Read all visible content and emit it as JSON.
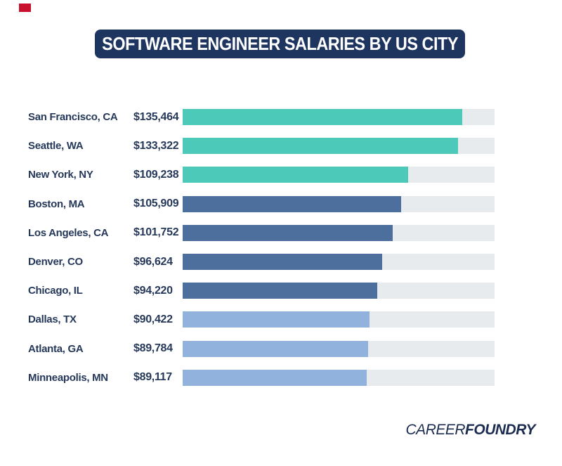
{
  "marker": {
    "color": "#c8102e"
  },
  "header": {
    "title": "SOFTWARE ENGINEER SALARIES BY US CITY",
    "background": "#1e3560",
    "text_color": "#ffffff"
  },
  "chart_data": {
    "type": "bar",
    "orientation": "horizontal",
    "title": "SOFTWARE ENGINEER SALARIES BY US CITY",
    "categories": [
      "San Francisco, CA",
      "Seattle, WA",
      "New York, NY",
      "Boston, MA",
      "Los Angeles, CA",
      "Denver, CO",
      "Chicago, IL",
      "Dallas, TX",
      "Atlanta, GA",
      "Minneapolis, MN"
    ],
    "values": [
      135464,
      133322,
      109238,
      105909,
      101752,
      96624,
      94220,
      90422,
      89784,
      89117
    ],
    "value_labels": [
      "$135,464",
      "$133,322",
      "$109,238",
      "$105,909",
      "$101,752",
      "$96,624",
      "$94,220",
      "$90,422",
      "$89,784",
      "$89,117"
    ],
    "bar_colors": [
      "#4cc9b8",
      "#4cc9b8",
      "#4cc9b8",
      "#4c6f9d",
      "#4c6f9d",
      "#4c6f9d",
      "#4c6f9d",
      "#90b2dc",
      "#90b2dc",
      "#90b2dc"
    ],
    "track_color": "#e8ebee",
    "xlim": [
      0,
      151000
    ],
    "grid": false,
    "legend": "none",
    "xlabel": "",
    "ylabel": ""
  },
  "footer": {
    "logo_regular": "CAREER",
    "logo_bold": "FOUNDRY",
    "color": "#1b2c50"
  }
}
